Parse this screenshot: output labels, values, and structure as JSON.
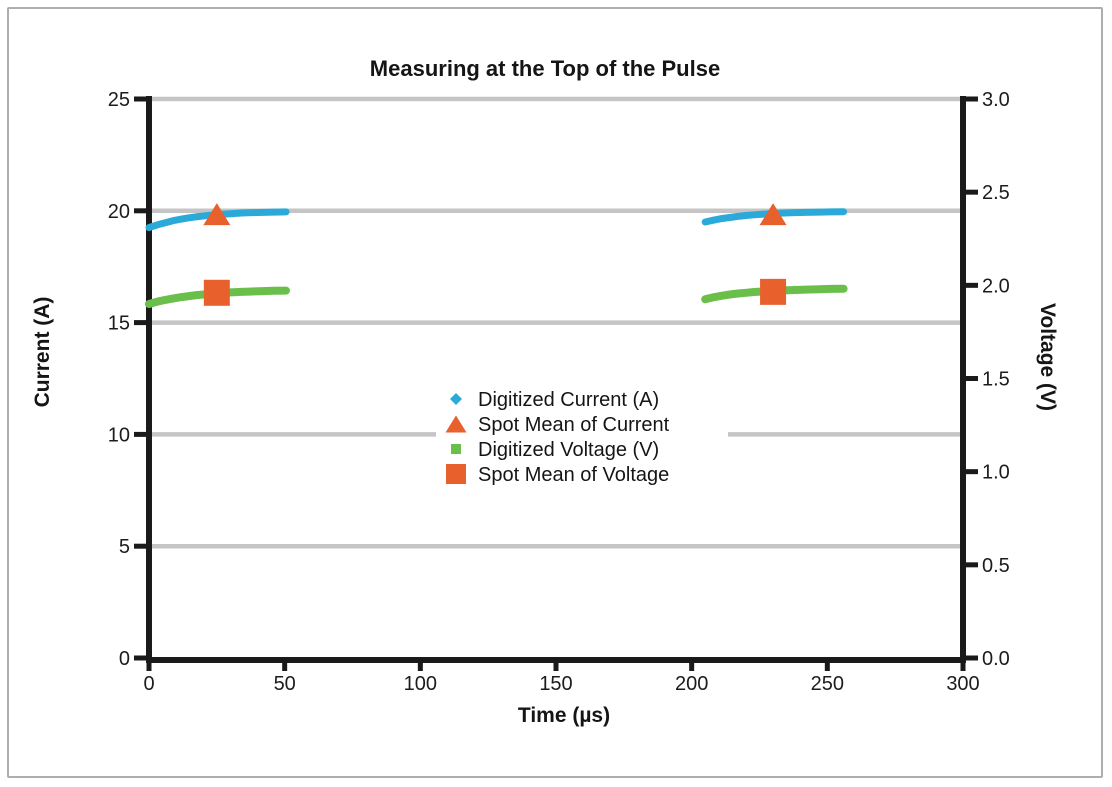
{
  "page": {
    "background": "#ffffff",
    "border_color": "#aeaeae"
  },
  "chart_data": {
    "type": "scatter",
    "title": "Measuring at the Top of the Pulse",
    "xlabel": "Time (µs)",
    "ylabel_left": "Current (A)",
    "ylabel_right": "Voltage (V)",
    "xlim": [
      0,
      300
    ],
    "xticks": [
      0,
      50,
      100,
      150,
      200,
      250,
      300
    ],
    "ylim_left": [
      0,
      25
    ],
    "yticks_left": [
      0,
      5,
      10,
      15,
      20,
      25
    ],
    "ylim_right": [
      0,
      3
    ],
    "yticks_right_values": [
      0,
      0.5,
      1,
      1.5,
      2,
      2.5,
      3
    ],
    "yticks_right_labels": [
      "0.0",
      "0.5",
      "1.0",
      "1.5",
      "2.0",
      "2.5",
      "3.0"
    ],
    "grid": {
      "horizontal_at_left_ticks": true,
      "color": "#c5c5c5"
    },
    "axis_color": "#1a1a1a",
    "legend": {
      "position": "center",
      "items": [
        {
          "marker": "diamond",
          "color": "#2baad9",
          "label": "Digitized Current (A)"
        },
        {
          "marker": "triangle",
          "color": "#e8612c",
          "label": "Spot Mean of Current"
        },
        {
          "marker": "square-small",
          "color": "#6abf4b",
          "label": "Digitized Voltage (V)"
        },
        {
          "marker": "square",
          "color": "#e8612c",
          "label": "Spot Mean of Voltage"
        }
      ]
    },
    "series": [
      {
        "name": "Digitized Current (A)",
        "axis": "left",
        "color": "#2baad9",
        "marker": "dot-cloud",
        "segments": [
          [
            [
              0,
              19.25
            ],
            [
              3,
              19.37
            ],
            [
              6,
              19.47
            ],
            [
              9,
              19.56
            ],
            [
              12,
              19.63
            ],
            [
              15,
              19.69
            ],
            [
              18,
              19.74
            ],
            [
              21,
              19.78
            ],
            [
              24,
              19.82
            ],
            [
              27,
              19.85
            ],
            [
              30,
              19.87
            ],
            [
              34,
              19.9
            ],
            [
              38,
              19.92
            ],
            [
              42,
              19.93
            ],
            [
              46,
              19.94
            ],
            [
              50.5,
              19.95
            ]
          ],
          [
            [
              205,
              19.5
            ],
            [
              208,
              19.58
            ],
            [
              211,
              19.65
            ],
            [
              214,
              19.7
            ],
            [
              217,
              19.75
            ],
            [
              220,
              19.79
            ],
            [
              223,
              19.82
            ],
            [
              226,
              19.85
            ],
            [
              230,
              19.88
            ],
            [
              234,
              19.9
            ],
            [
              238,
              19.92
            ],
            [
              242,
              19.93
            ],
            [
              247,
              19.94
            ],
            [
              251,
              19.95
            ],
            [
              256,
              19.96
            ]
          ]
        ]
      },
      {
        "name": "Spot Mean of Current",
        "axis": "left",
        "color": "#e8612c",
        "marker": "triangle",
        "points": [
          [
            25,
            19.85
          ],
          [
            230,
            19.85
          ]
        ]
      },
      {
        "name": "Digitized Voltage (V)",
        "axis": "right",
        "color": "#6abf4b",
        "marker": "dot-cloud",
        "segments": [
          [
            [
              0,
              1.9
            ],
            [
              3,
              1.912
            ],
            [
              6,
              1.922
            ],
            [
              9,
              1.93
            ],
            [
              12,
              1.937
            ],
            [
              15,
              1.943
            ],
            [
              18,
              1.948
            ],
            [
              21,
              1.952
            ],
            [
              24,
              1.956
            ],
            [
              27,
              1.959
            ],
            [
              30,
              1.962
            ],
            [
              34,
              1.965
            ],
            [
              38,
              1.967
            ],
            [
              42,
              1.969
            ],
            [
              46,
              1.971
            ],
            [
              50.5,
              1.972
            ]
          ],
          [
            [
              205,
              1.925
            ],
            [
              208,
              1.936
            ],
            [
              211,
              1.944
            ],
            [
              214,
              1.951
            ],
            [
              217,
              1.956
            ],
            [
              220,
              1.96
            ],
            [
              223,
              1.964
            ],
            [
              226,
              1.967
            ],
            [
              230,
              1.97
            ],
            [
              234,
              1.973
            ],
            [
              238,
              1.975
            ],
            [
              242,
              1.977
            ],
            [
              247,
              1.979
            ],
            [
              251,
              1.981
            ],
            [
              256,
              1.982
            ]
          ]
        ]
      },
      {
        "name": "Spot Mean of Voltage",
        "axis": "right",
        "color": "#e8612c",
        "marker": "square",
        "points": [
          [
            25,
            1.96
          ],
          [
            230,
            1.965
          ]
        ]
      }
    ]
  }
}
